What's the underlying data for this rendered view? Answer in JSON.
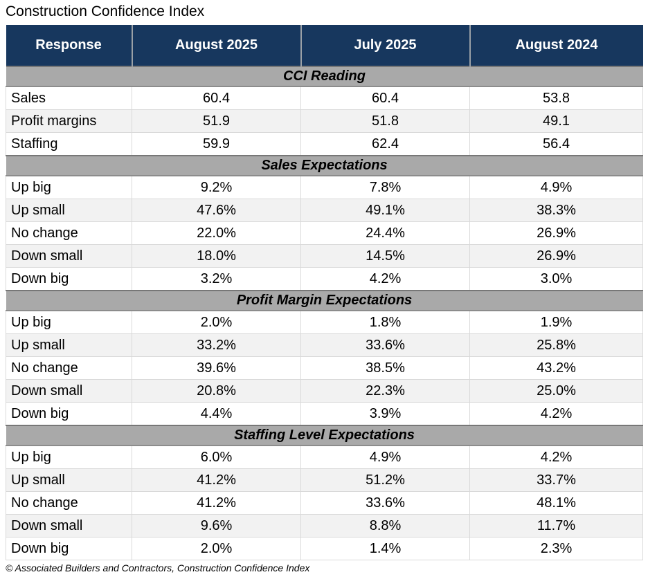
{
  "title": "Construction Confidence Index",
  "footer": "© Associated Builders and Contractors, Construction Confidence Index",
  "colors": {
    "header_bg": "#17375E",
    "header_text": "#FFFFFF",
    "section_band_bg": "#A9A9A9",
    "row_alt_bg": "#F2F2F2",
    "cell_border": "#D9D9D9"
  },
  "chart_data": {
    "type": "table",
    "title": "Construction Confidence Index",
    "columns": [
      "Response",
      "August 2025",
      "July 2025",
      "August 2024"
    ],
    "sections": [
      {
        "name": "CCI Reading",
        "rows": [
          [
            "Sales",
            "60.4",
            "60.4",
            "53.8"
          ],
          [
            "Profit margins",
            "51.9",
            "51.8",
            "49.1"
          ],
          [
            "Staffing",
            "59.9",
            "62.4",
            "56.4"
          ]
        ]
      },
      {
        "name": "Sales Expectations",
        "rows": [
          [
            "Up big",
            "9.2%",
            "7.8%",
            "4.9%"
          ],
          [
            "Up small",
            "47.6%",
            "49.1%",
            "38.3%"
          ],
          [
            "No change",
            "22.0%",
            "24.4%",
            "26.9%"
          ],
          [
            "Down small",
            "18.0%",
            "14.5%",
            "26.9%"
          ],
          [
            "Down big",
            "3.2%",
            "4.2%",
            "3.0%"
          ]
        ]
      },
      {
        "name": "Profit Margin Expectations",
        "rows": [
          [
            "Up big",
            "2.0%",
            "1.8%",
            "1.9%"
          ],
          [
            "Up small",
            "33.2%",
            "33.6%",
            "25.8%"
          ],
          [
            "No change",
            "39.6%",
            "38.5%",
            "43.2%"
          ],
          [
            "Down small",
            "20.8%",
            "22.3%",
            "25.0%"
          ],
          [
            "Down big",
            "4.4%",
            "3.9%",
            "4.2%"
          ]
        ]
      },
      {
        "name": "Staffing Level Expectations",
        "rows": [
          [
            "Up big",
            "6.0%",
            "4.9%",
            "4.2%"
          ],
          [
            "Up small",
            "41.2%",
            "51.2%",
            "33.7%"
          ],
          [
            "No change",
            "41.2%",
            "33.6%",
            "48.1%"
          ],
          [
            "Down small",
            "9.6%",
            "8.8%",
            "11.7%"
          ],
          [
            "Down big",
            "2.0%",
            "1.4%",
            "2.3%"
          ]
        ]
      }
    ]
  }
}
